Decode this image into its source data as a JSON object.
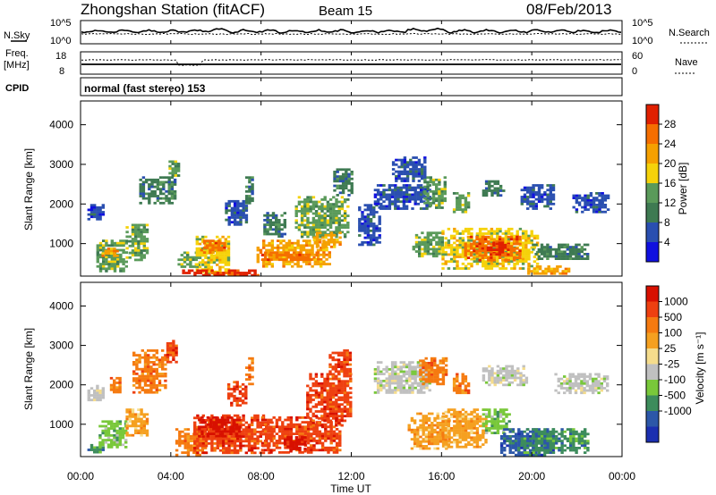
{
  "header": {
    "station": "Zhongshan Station (fitACF)",
    "beam": "Beam 15",
    "date": "08/Feb/2013"
  },
  "strip": {
    "nsky_label": "N.Sky",
    "nsky_ticks": [
      "10^5",
      "10^0"
    ],
    "nsearch_label": "N.Search",
    "nsearch_ticks": [
      "10^5",
      "10^0"
    ],
    "freq_label": "Freq.",
    "freq_unit": "[MHz]",
    "freq_ticks": [
      "18",
      "8"
    ],
    "nave_label": "Nave",
    "nave_ticks": [
      "60",
      "0"
    ],
    "cpid_label": "CPID",
    "cpid_text": "normal (fast stereo) 153"
  },
  "colors": {
    "power": [
      "#1010e0",
      "#2a4fb0",
      "#3e7a52",
      "#5a9a5a",
      "#f5d20a",
      "#f5a000",
      "#f56e00",
      "#e02000"
    ],
    "velocity": [
      "#1b2fb0",
      "#2c57a8",
      "#3d8c5c",
      "#79c83a",
      "#c0c0c0",
      "#f5dc8c",
      "#f5a020",
      "#f57a10",
      "#ee4010",
      "#d81000"
    ]
  },
  "chart_data": [
    {
      "type": "heatmap",
      "title": "Power",
      "xlabel": "Time UT",
      "ylabel": "Slant Range [km]",
      "colorbar_label": "Power [dB]",
      "x_ticks": [
        "00:00",
        "04:00",
        "08:00",
        "12:00",
        "16:00",
        "20:00",
        "00:00"
      ],
      "y_ticks": [
        1000,
        2000,
        3000,
        4000
      ],
      "ylim": [
        180,
        4600
      ],
      "xlim_hours": [
        0,
        24
      ],
      "colorbar_ticks": [
        4,
        8,
        12,
        16,
        20,
        24,
        28
      ],
      "colorbar_range": [
        0,
        32
      ],
      "regions": [
        {
          "t": [
            0.7,
            2.0
          ],
          "r": [
            300,
            1100
          ],
          "v": 14
        },
        {
          "t": [
            0.8,
            1.6
          ],
          "r": [
            700,
            900
          ],
          "v": 22
        },
        {
          "t": [
            0.3,
            1.0
          ],
          "r": [
            1600,
            2000
          ],
          "v": 6
        },
        {
          "t": [
            2.0,
            3.0
          ],
          "r": [
            600,
            1500
          ],
          "v": 12
        },
        {
          "t": [
            2.6,
            4.2
          ],
          "r": [
            2000,
            2700
          ],
          "v": 9
        },
        {
          "t": [
            3.9,
            4.3
          ],
          "r": [
            2700,
            3100
          ],
          "v": 14
        },
        {
          "t": [
            4.3,
            5.2
          ],
          "r": [
            400,
            800
          ],
          "v": 12
        },
        {
          "t": [
            5.1,
            6.6
          ],
          "r": [
            250,
            1200
          ],
          "v": 18
        },
        {
          "t": [
            5.3,
            6.4
          ],
          "r": [
            800,
            1100
          ],
          "v": 25
        },
        {
          "t": [
            4.5,
            8.0
          ],
          "r": [
            200,
            350
          ],
          "v": 28
        },
        {
          "t": [
            6.4,
            7.4
          ],
          "r": [
            1500,
            2100
          ],
          "v": 6
        },
        {
          "t": [
            7.3,
            7.6
          ],
          "r": [
            2000,
            2700
          ],
          "v": 11
        },
        {
          "t": [
            7.8,
            11.0
          ],
          "r": [
            450,
            1100
          ],
          "v": 20
        },
        {
          "t": [
            8.0,
            10.5
          ],
          "r": [
            600,
            800
          ],
          "v": 26
        },
        {
          "t": [
            8.1,
            9.0
          ],
          "r": [
            1200,
            1800
          ],
          "v": 9
        },
        {
          "t": [
            9.5,
            11.8
          ],
          "r": [
            1200,
            2200
          ],
          "v": 12
        },
        {
          "t": [
            10.3,
            11.5
          ],
          "r": [
            900,
            1300
          ],
          "v": 20
        },
        {
          "t": [
            11.2,
            12.0
          ],
          "r": [
            2200,
            2900
          ],
          "v": 10
        },
        {
          "t": [
            12.3,
            13.2
          ],
          "r": [
            1000,
            2000
          ],
          "v": 6
        },
        {
          "t": [
            13.0,
            15.5
          ],
          "r": [
            1900,
            2500
          ],
          "v": 7
        },
        {
          "t": [
            13.8,
            15.3
          ],
          "r": [
            2600,
            3200
          ],
          "v": 6
        },
        {
          "t": [
            15.2,
            16.2
          ],
          "r": [
            1900,
            2700
          ],
          "v": 14
        },
        {
          "t": [
            14.7,
            16.0
          ],
          "r": [
            700,
            1300
          ],
          "v": 12
        },
        {
          "t": [
            16.0,
            20.2
          ],
          "r": [
            350,
            1400
          ],
          "v": 16
        },
        {
          "t": [
            17.0,
            19.5
          ],
          "r": [
            600,
            1200
          ],
          "v": 25
        },
        {
          "t": [
            18.0,
            18.9
          ],
          "r": [
            750,
            1050
          ],
          "v": 29
        },
        {
          "t": [
            16.5,
            17.2
          ],
          "r": [
            1800,
            2300
          ],
          "v": 14
        },
        {
          "t": [
            17.8,
            18.7
          ],
          "r": [
            2200,
            2600
          ],
          "v": 8
        },
        {
          "t": [
            19.5,
            21.0
          ],
          "r": [
            1900,
            2500
          ],
          "v": 7
        },
        {
          "t": [
            19.8,
            21.6
          ],
          "r": [
            250,
            450
          ],
          "v": 22
        },
        {
          "t": [
            20.0,
            22.5
          ],
          "r": [
            600,
            1000
          ],
          "v": 8
        },
        {
          "t": [
            21.8,
            23.4
          ],
          "r": [
            1800,
            2300
          ],
          "v": 6
        }
      ]
    },
    {
      "type": "heatmap",
      "title": "Velocity",
      "xlabel": "Time UT",
      "ylabel": "Slant Range [km]",
      "colorbar_label": "Velocity [m s⁻¹]",
      "x_ticks": [
        "00:00",
        "04:00",
        "08:00",
        "12:00",
        "16:00",
        "20:00",
        "00:00"
      ],
      "y_ticks": [
        1000,
        2000,
        3000,
        4000
      ],
      "ylim": [
        180,
        4600
      ],
      "xlim_hours": [
        0,
        24
      ],
      "colorbar_ticks": [
        "1000",
        "500",
        "100",
        "25",
        "-25",
        "-100",
        "-500",
        "-1000"
      ],
      "regions": [
        {
          "t": [
            0.3,
            1.0
          ],
          "r": [
            300,
            500
          ],
          "v": 2
        },
        {
          "t": [
            0.8,
            2.0
          ],
          "r": [
            400,
            1100
          ],
          "v": 3
        },
        {
          "t": [
            0.3,
            1.0
          ],
          "r": [
            1600,
            2000
          ],
          "v": 4
        },
        {
          "t": [
            1.3,
            1.8
          ],
          "r": [
            1800,
            2200
          ],
          "v": 7
        },
        {
          "t": [
            2.3,
            3.8
          ],
          "r": [
            1800,
            2900
          ],
          "v": 7
        },
        {
          "t": [
            3.8,
            4.3
          ],
          "r": [
            2600,
            3200
          ],
          "v": 8
        },
        {
          "t": [
            2.0,
            3.0
          ],
          "r": [
            700,
            1400
          ],
          "v": 6
        },
        {
          "t": [
            4.2,
            5.5
          ],
          "r": [
            200,
            900
          ],
          "v": 7
        },
        {
          "t": [
            5.0,
            8.5
          ],
          "r": [
            250,
            1250
          ],
          "v": 8
        },
        {
          "t": [
            5.2,
            7.0
          ],
          "r": [
            700,
            1200
          ],
          "v": 9
        },
        {
          "t": [
            6.5,
            7.3
          ],
          "r": [
            1500,
            2100
          ],
          "v": 8
        },
        {
          "t": [
            7.3,
            7.6
          ],
          "r": [
            2000,
            2700
          ],
          "v": 7
        },
        {
          "t": [
            8.0,
            11.5
          ],
          "r": [
            300,
            1200
          ],
          "v": 8
        },
        {
          "t": [
            9.0,
            10.0
          ],
          "r": [
            300,
            700
          ],
          "v": 9
        },
        {
          "t": [
            10.0,
            12.0
          ],
          "r": [
            1000,
            2300
          ],
          "v": 8
        },
        {
          "t": [
            11.0,
            12.0
          ],
          "r": [
            2200,
            2900
          ],
          "v": 8
        },
        {
          "t": [
            13.0,
            15.5
          ],
          "r": [
            1800,
            2600
          ],
          "v": 4
        },
        {
          "t": [
            15.0,
            16.2
          ],
          "r": [
            2000,
            2700
          ],
          "v": 7
        },
        {
          "t": [
            14.5,
            16.3
          ],
          "r": [
            400,
            1300
          ],
          "v": 6
        },
        {
          "t": [
            16.0,
            18.0
          ],
          "r": [
            400,
            1400
          ],
          "v": 6
        },
        {
          "t": [
            17.8,
            19.0
          ],
          "r": [
            800,
            1400
          ],
          "v": 3
        },
        {
          "t": [
            18.6,
            21.0
          ],
          "r": [
            200,
            900
          ],
          "v": 1
        },
        {
          "t": [
            19.5,
            22.5
          ],
          "r": [
            300,
            900
          ],
          "v": 2
        },
        {
          "t": [
            16.5,
            17.2
          ],
          "r": [
            1800,
            2300
          ],
          "v": 7
        },
        {
          "t": [
            17.8,
            19.8
          ],
          "r": [
            2000,
            2500
          ],
          "v": 4
        },
        {
          "t": [
            21.0,
            23.3
          ],
          "r": [
            1800,
            2300
          ],
          "v": 4
        }
      ]
    }
  ]
}
